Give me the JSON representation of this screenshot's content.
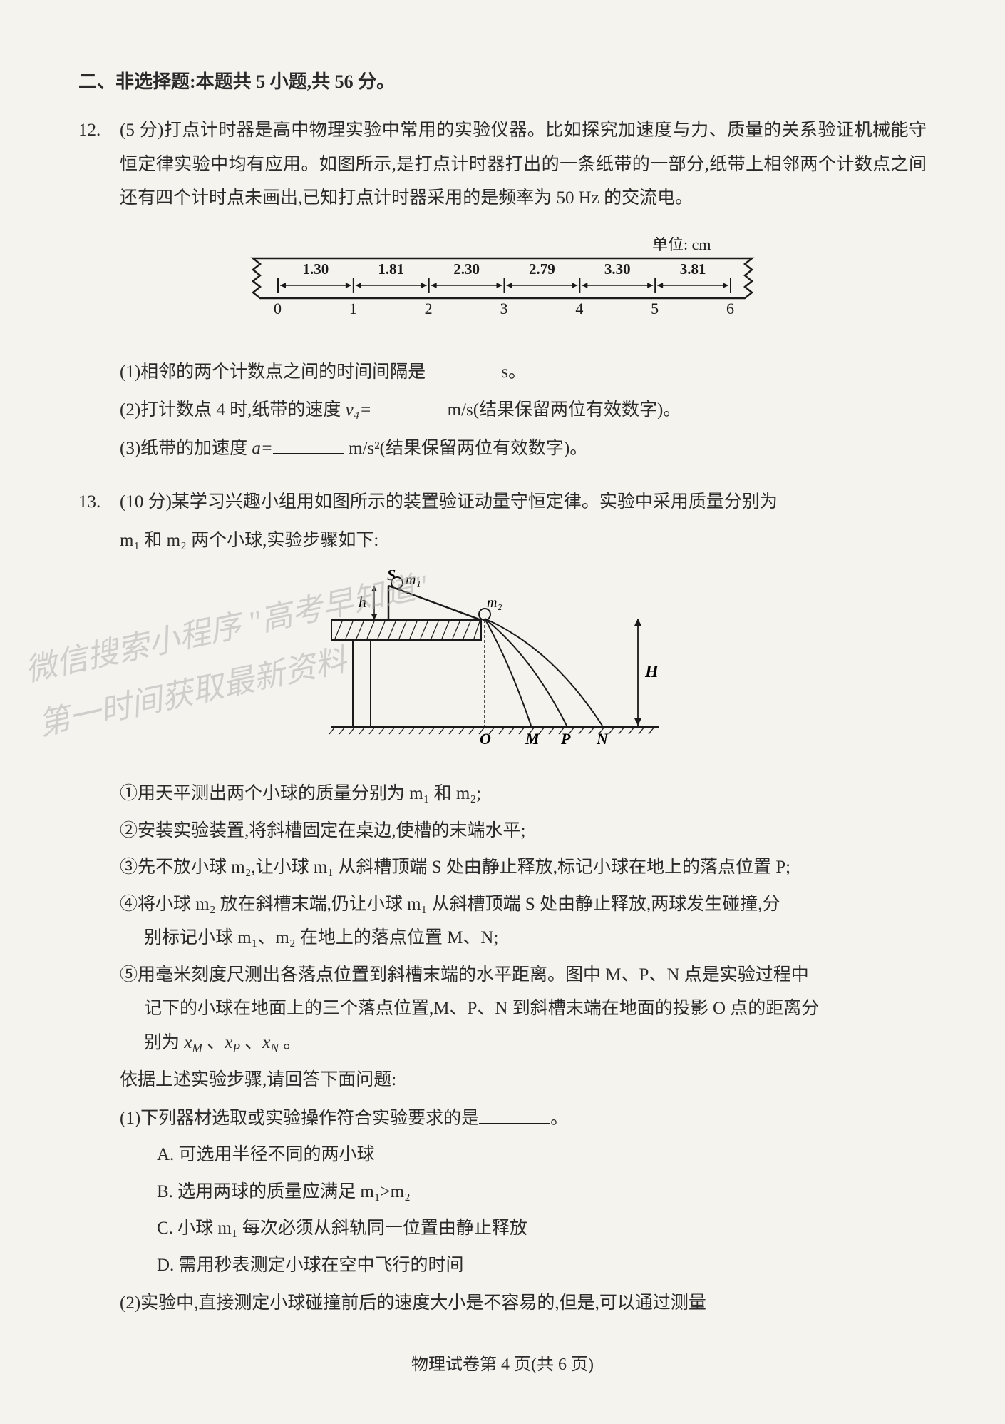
{
  "section_header": "二、非选择题:本题共 5 小题,共 56 分。",
  "q12": {
    "num": "12.",
    "points": "(5 分)",
    "text": "打点计时器是高中物理实验中常用的实验仪器。比如探究加速度与力、质量的关系验证机械能守恒定律实验中均有应用。如图所示,是打点计时器打出的一条纸带的一部分,纸带上相邻两个计数点之间还有四个计时点未画出,已知打点计时器采用的是频率为 50 Hz 的交流电。",
    "tape": {
      "unit_label": "单位: cm",
      "segments": [
        "1.30",
        "1.81",
        "2.30",
        "2.79",
        "3.30",
        "3.81"
      ],
      "ticks": [
        "0",
        "1",
        "2",
        "3",
        "4",
        "5",
        "6"
      ],
      "stroke": "#1a1a1a",
      "fontsize": 22
    },
    "parts": {
      "p1_pre": "(1)相邻的两个计数点之间的时间间隔是",
      "p1_post": " s。",
      "p2_pre": "(2)打计数点 4 时,纸带的速度 ",
      "p2_sym": "v₄=",
      "p2_post": " m/s(结果保留两位有效数字)。",
      "p3_pre": "(3)纸带的加速度 ",
      "p3_sym": "a=",
      "p3_post": " m/s²(结果保留两位有效数字)。"
    }
  },
  "q13": {
    "num": "13.",
    "points": "(10 分)",
    "intro1": "某学习兴趣小组用如图所示的装置验证动量守恒定律。实验中采用质量分别为",
    "intro2": "m₁ 和 m₂ 两个小球,实验步骤如下:",
    "fig": {
      "labels": {
        "S": "S",
        "m1": "m₁",
        "m2": "m₂",
        "h": "h",
        "H": "H",
        "O": "O",
        "M": "M",
        "P": "P",
        "N": "N"
      },
      "stroke": "#1a1a1a",
      "fill": "#e8e6e0"
    },
    "watermark1": "微信搜索小程序 \"高考早知道\"",
    "watermark2": "第一时间获取最新资料",
    "steps": {
      "s1": "①用天平测出两个小球的质量分别为 m₁ 和 m₂;",
      "s2": "②安装实验装置,将斜槽固定在桌边,使槽的末端水平;",
      "s3": "③先不放小球 m₂,让小球 m₁ 从斜槽顶端 S 处由静止释放,标记小球在地上的落点位置 P;",
      "s4a": "④将小球 m₂ 放在斜槽末端,仍让小球 m₁ 从斜槽顶端 S 处由静止释放,两球发生碰撞,分",
      "s4b": "别标记小球 m₁、m₂ 在地上的落点位置 M、N;",
      "s5a": "⑤用毫米刻度尺测出各落点位置到斜槽末端的水平距离。图中 M、P、N 点是实验过程中",
      "s5b": "记下的小球在地面上的三个落点位置,M、P、N 到斜槽末端在地面的投影 O 点的距离分",
      "s5c": "别为 xM 、xP 、xN 。",
      "lead": "依据上述实验步骤,请回答下面问题:"
    },
    "parts": {
      "p1_text": "(1)下列器材选取或实验操作符合实验要求的是",
      "p1_post": "。",
      "optA": "A. 可选用半径不同的两小球",
      "optB": "B. 选用两球的质量应满足 m₁>m₂",
      "optC": "C. 小球 m₁ 每次必须从斜轨同一位置由静止释放",
      "optD": "D. 需用秒表测定小球在空中飞行的时间",
      "p2_text": "(2)实验中,直接测定小球碰撞前后的速度大小是不容易的,但是,可以通过测量"
    }
  },
  "footer": "物理试卷第 4 页(共 6 页)"
}
